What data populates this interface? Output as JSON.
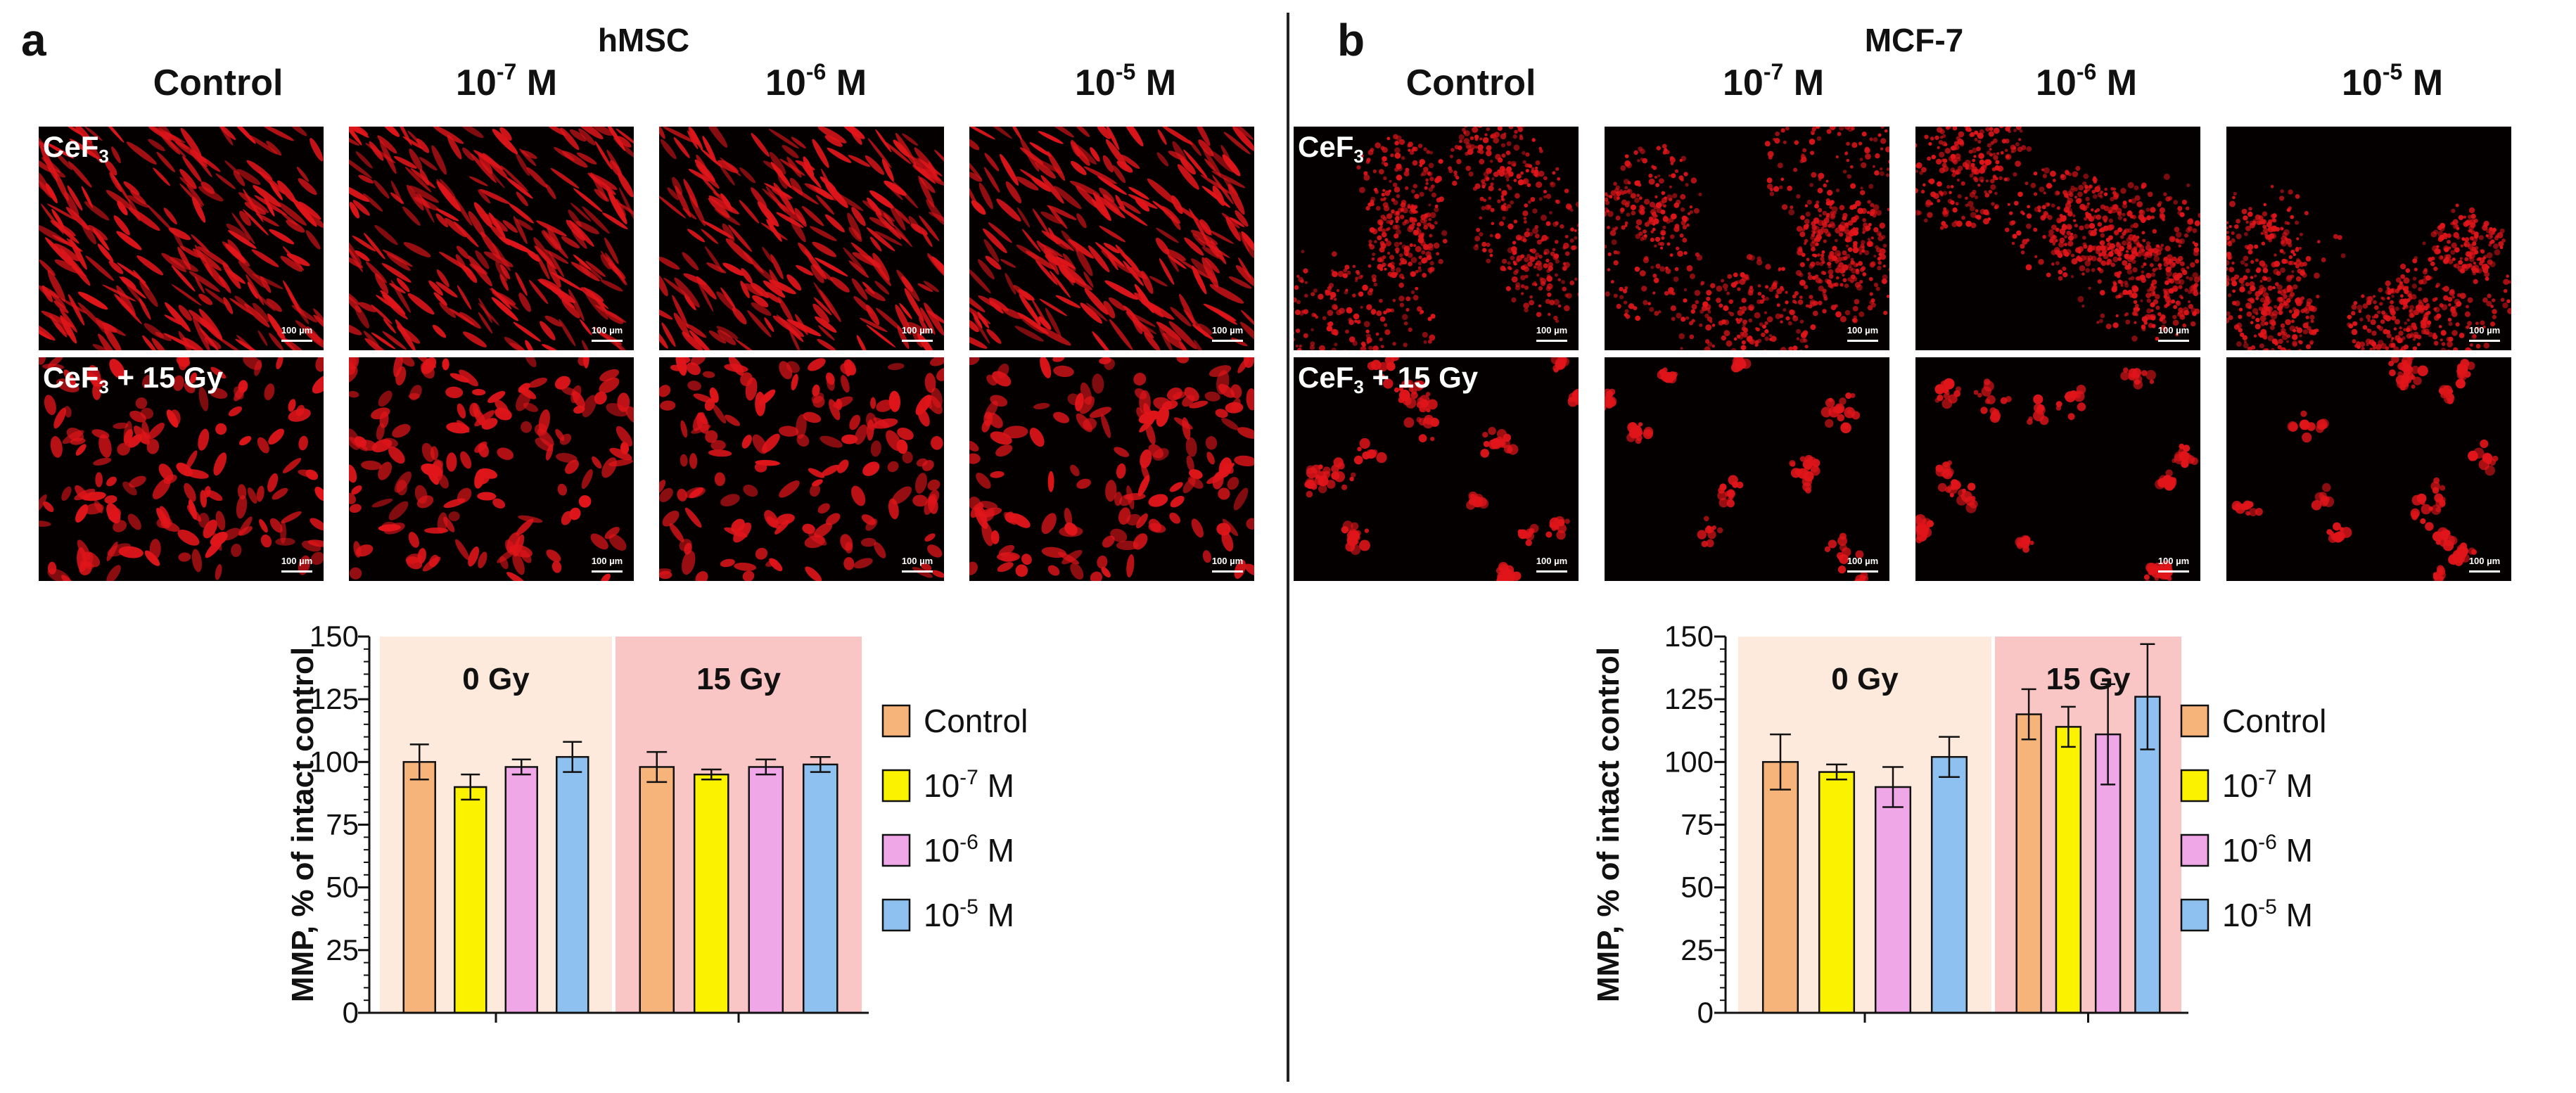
{
  "panels": {
    "a": {
      "letter": "a",
      "cell_line": "hMSC",
      "columns": [
        {
          "base": "Control",
          "exp": "",
          "unit": ""
        },
        {
          "base": "10",
          "exp": "-7",
          "unit": " M"
        },
        {
          "base": "10",
          "exp": "-6",
          "unit": " M"
        },
        {
          "base": "10",
          "exp": "-5",
          "unit": " M"
        }
      ],
      "rows": [
        {
          "main": "CeF",
          "sub": "3",
          "suffix": ""
        },
        {
          "main": "CeF",
          "sub": "3",
          "suffix": " + 15 Gy"
        }
      ],
      "scale_label": "100 µm"
    },
    "b": {
      "letter": "b",
      "cell_line": "MCF-7",
      "columns": [
        {
          "base": "Control",
          "exp": "",
          "unit": ""
        },
        {
          "base": "10",
          "exp": "-7",
          "unit": " M"
        },
        {
          "base": "10",
          "exp": "-6",
          "unit": " M"
        },
        {
          "base": "10",
          "exp": "-5",
          "unit": " M"
        }
      ],
      "rows": [
        {
          "main": "CeF",
          "sub": "3",
          "suffix": ""
        },
        {
          "main": "CeF",
          "sub": "3",
          "suffix": " + 15 Gy"
        }
      ],
      "scale_label": "100 µm"
    }
  },
  "colors": {
    "control": "#f7b47a",
    "conc_7": "#fbf200",
    "conc_6": "#f0a7e8",
    "conc_5": "#8ec0f0",
    "zone_0gy": "#fdeadc",
    "zone_15gy": "#f9c5c5",
    "cell_red": "#e0151a"
  },
  "chart_data": [
    {
      "type": "bar",
      "panel": "a",
      "ylabel": "MMP, % of intact control",
      "ylim": [
        0,
        150
      ],
      "yticks": [
        0,
        25,
        50,
        75,
        100,
        125,
        150
      ],
      "groups": [
        "0 Gy",
        "15 Gy"
      ],
      "series": [
        {
          "name": "Control",
          "legend_base": "Control",
          "legend_exp": "",
          "legend_unit": "",
          "values": [
            100,
            98
          ],
          "errors": [
            7,
            6
          ]
        },
        {
          "name": "10-7 M",
          "legend_base": "10",
          "legend_exp": "-7",
          "legend_unit": " M",
          "values": [
            90,
            95
          ],
          "errors": [
            5,
            2
          ]
        },
        {
          "name": "10-6 M",
          "legend_base": "10",
          "legend_exp": "-6",
          "legend_unit": " M",
          "values": [
            98,
            98
          ],
          "errors": [
            3,
            3
          ]
        },
        {
          "name": "10-5 M",
          "legend_base": "10",
          "legend_exp": "-5",
          "legend_unit": " M",
          "values": [
            102,
            99
          ],
          "errors": [
            6,
            3
          ]
        }
      ]
    },
    {
      "type": "bar",
      "panel": "b",
      "ylabel": "MMP, % of intact control",
      "ylim": [
        0,
        150
      ],
      "yticks": [
        0,
        25,
        50,
        75,
        100,
        125,
        150
      ],
      "groups": [
        "0 Gy",
        "15 Gy"
      ],
      "series": [
        {
          "name": "Control",
          "legend_base": "Control",
          "legend_exp": "",
          "legend_unit": "",
          "values": [
            100,
            119
          ],
          "errors": [
            11,
            10
          ]
        },
        {
          "name": "10-7 M",
          "legend_base": "10",
          "legend_exp": "-7",
          "legend_unit": " M",
          "values": [
            96,
            114
          ],
          "errors": [
            3,
            8
          ]
        },
        {
          "name": "10-6 M",
          "legend_base": "10",
          "legend_exp": "-6",
          "legend_unit": " M",
          "values": [
            90,
            111
          ],
          "errors": [
            8,
            20
          ]
        },
        {
          "name": "10-5 M",
          "legend_base": "10",
          "legend_exp": "-5",
          "legend_unit": " M",
          "values": [
            102,
            126
          ],
          "errors": [
            8,
            21
          ]
        }
      ]
    }
  ]
}
